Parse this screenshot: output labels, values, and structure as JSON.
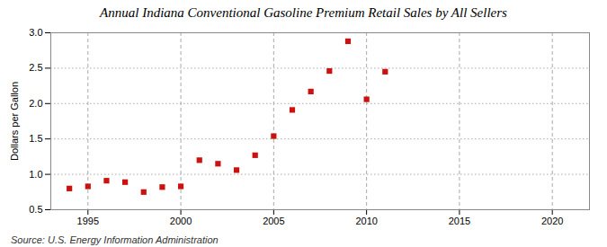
{
  "chart_data": {
    "type": "scatter",
    "title": "Annual Indiana Conventional Gasoline Premium Retail Sales by All Sellers",
    "ylabel": "Dollars per Gallon",
    "source": "Source: U.S. Energy Information Administration",
    "x": [
      1994,
      1995,
      1996,
      1997,
      1998,
      1999,
      2000,
      2001,
      2002,
      2003,
      2004,
      2005,
      2006,
      2007,
      2008,
      2009,
      2010,
      2011
    ],
    "values": [
      0.8,
      0.83,
      0.91,
      0.89,
      0.75,
      0.82,
      0.83,
      1.2,
      1.15,
      1.06,
      1.27,
      1.54,
      1.91,
      2.17,
      2.46,
      2.88,
      2.06,
      2.45
    ],
    "color": "#cc1111",
    "marker": "square",
    "xlim": [
      1993,
      2022
    ],
    "ylim": [
      0.5,
      3.0
    ],
    "xticks": [
      1995,
      2000,
      2005,
      2010,
      2015,
      2020
    ],
    "yticks": [
      0.5,
      {
        "value": 1.0,
        "label": "1.0"
      },
      1.5,
      {
        "value": 2.0,
        "label": "2.0"
      },
      2.5,
      {
        "value": 3.0,
        "label": "3.0"
      }
    ],
    "grid": true
  }
}
